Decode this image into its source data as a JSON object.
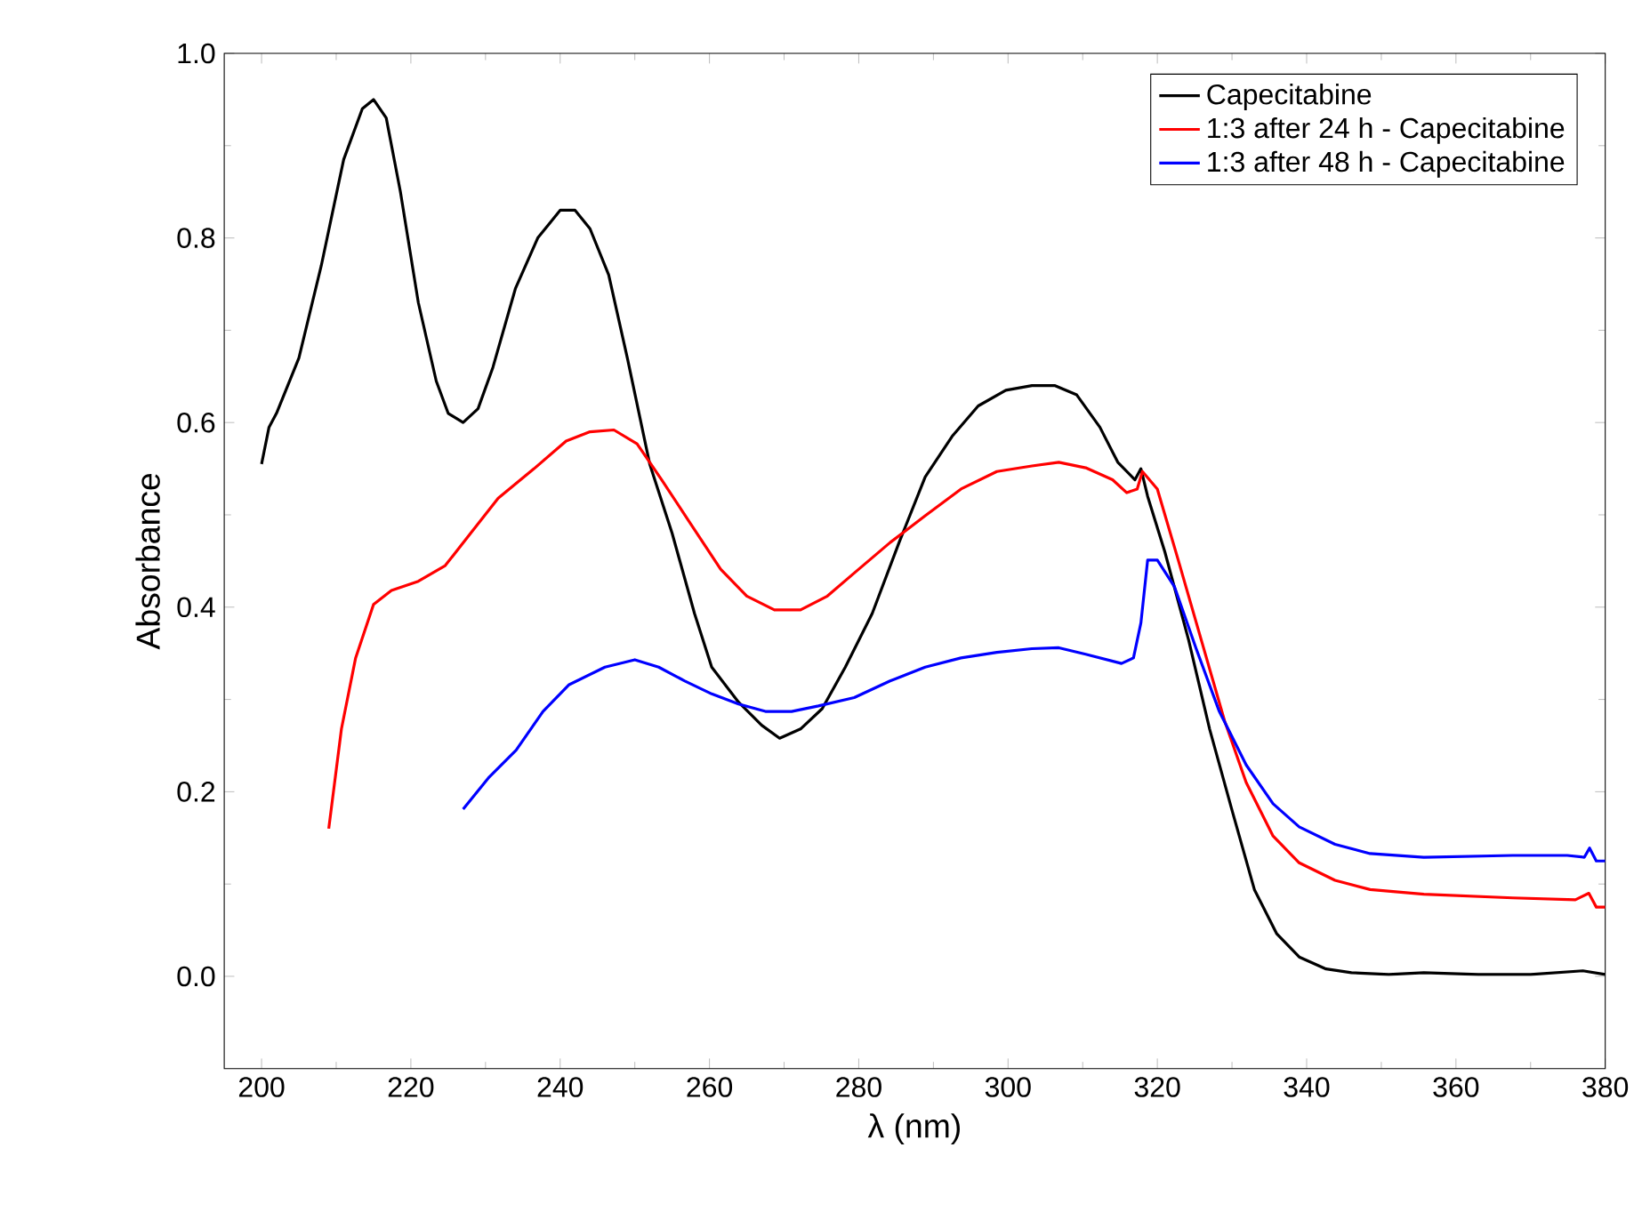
{
  "chart_data": {
    "type": "line",
    "xlabel": "λ (nm)",
    "ylabel": "Absorbance",
    "xlim": [
      195,
      380
    ],
    "ylim": [
      -0.1,
      1.0
    ],
    "xticks": [
      200,
      220,
      240,
      260,
      280,
      300,
      320,
      340,
      360,
      380
    ],
    "yticks": [
      {
        "value": 0,
        "label": "0.0"
      },
      {
        "value": 0.2,
        "label": "0.2"
      },
      {
        "value": 0.4,
        "label": "0.4"
      },
      {
        "value": 0.6,
        "label": "0.6"
      },
      {
        "value": 0.8,
        "label": "0.8"
      },
      {
        "value": 1.0,
        "label": "1.0"
      }
    ],
    "grid": false,
    "legend": "top right",
    "marker": "none",
    "line_style": "solid",
    "series": [
      {
        "name": "Capecitabine",
        "color": "#000000",
        "x": [
          200,
          201,
          202,
          205,
          208,
          211,
          213.5,
          215,
          216.7,
          218.6,
          221,
          223.4,
          225,
          227,
          229,
          231,
          234,
          237,
          240,
          242,
          244,
          246.5,
          249,
          252,
          255,
          258,
          260.3,
          263.9,
          267,
          269.4,
          272.2,
          275.1,
          278.2,
          281.8,
          285.4,
          288.9,
          292.5,
          296,
          299.7,
          303.2,
          306.3,
          309.2,
          312.3,
          314.7,
          317,
          317.8,
          318.7,
          321,
          324.2,
          327,
          330,
          333,
          336,
          339,
          342.6,
          346,
          351,
          355.7,
          363,
          370,
          377,
          380
        ],
        "values": [
          0.555,
          0.595,
          0.61,
          0.67,
          0.77,
          0.885,
          0.94,
          0.95,
          0.93,
          0.85,
          0.73,
          0.645,
          0.61,
          0.6,
          0.615,
          0.66,
          0.745,
          0.8,
          0.83,
          0.83,
          0.81,
          0.76,
          0.67,
          0.555,
          0.48,
          0.393,
          0.335,
          0.297,
          0.272,
          0.258,
          0.268,
          0.29,
          0.335,
          0.393,
          0.47,
          0.541,
          0.585,
          0.618,
          0.635,
          0.64,
          0.64,
          0.63,
          0.595,
          0.557,
          0.538,
          0.55,
          0.52,
          0.46,
          0.364,
          0.268,
          0.18,
          0.094,
          0.046,
          0.021,
          0.008,
          0.004,
          0.002,
          0.004,
          0.002,
          0.002,
          0.006,
          0.002
        ]
      },
      {
        "name": "1:3 after 24 h - Capecitabine",
        "color": "#ff0000",
        "x": [
          209,
          210.7,
          212.6,
          215,
          217.4,
          221,
          224.6,
          228,
          231.7,
          236.5,
          240.8,
          244,
          247.2,
          250.3,
          253.6,
          257.5,
          261.5,
          265,
          268.7,
          272.2,
          275.8,
          279.4,
          284.2,
          288.9,
          293.7,
          298.5,
          303.2,
          306.8,
          310.4,
          314,
          315.9,
          317.3,
          318,
          320,
          322.8,
          325.9,
          329,
          331.9,
          335.5,
          339,
          343.8,
          348.5,
          355.7,
          367.6,
          376,
          377.8,
          378.8,
          380
        ],
        "values": [
          0.16,
          0.268,
          0.345,
          0.403,
          0.418,
          0.428,
          0.445,
          0.48,
          0.518,
          0.55,
          0.58,
          0.59,
          0.592,
          0.577,
          0.538,
          0.49,
          0.441,
          0.412,
          0.397,
          0.397,
          0.412,
          0.437,
          0.47,
          0.499,
          0.528,
          0.547,
          0.553,
          0.557,
          0.551,
          0.538,
          0.524,
          0.528,
          0.547,
          0.528,
          0.451,
          0.364,
          0.277,
          0.21,
          0.152,
          0.123,
          0.104,
          0.094,
          0.089,
          0.085,
          0.083,
          0.09,
          0.075,
          0.075
        ]
      },
      {
        "name": "1:3 after 48 h - Capecitabine",
        "color": "#0000ff",
        "x": [
          227,
          230.5,
          234.1,
          237.7,
          241.2,
          246,
          250,
          253.2,
          256.7,
          260.3,
          263.9,
          267.5,
          271,
          274.6,
          279.4,
          284.2,
          288.9,
          293.7,
          298.5,
          303.2,
          306.8,
          310.4,
          315.2,
          316.8,
          317.8,
          318.7,
          320,
          322.3,
          325.2,
          328.3,
          331.9,
          335.5,
          339,
          343.8,
          348.5,
          355.7,
          367.6,
          374.9,
          377.2,
          377.9,
          378.8,
          380
        ],
        "values": [
          0.181,
          0.216,
          0.245,
          0.287,
          0.316,
          0.335,
          0.343,
          0.335,
          0.32,
          0.306,
          0.295,
          0.287,
          0.287,
          0.293,
          0.302,
          0.32,
          0.335,
          0.345,
          0.351,
          0.355,
          0.356,
          0.349,
          0.339,
          0.345,
          0.383,
          0.451,
          0.451,
          0.422,
          0.355,
          0.287,
          0.229,
          0.187,
          0.162,
          0.143,
          0.133,
          0.129,
          0.131,
          0.131,
          0.129,
          0.139,
          0.125,
          0.125
        ]
      }
    ]
  }
}
